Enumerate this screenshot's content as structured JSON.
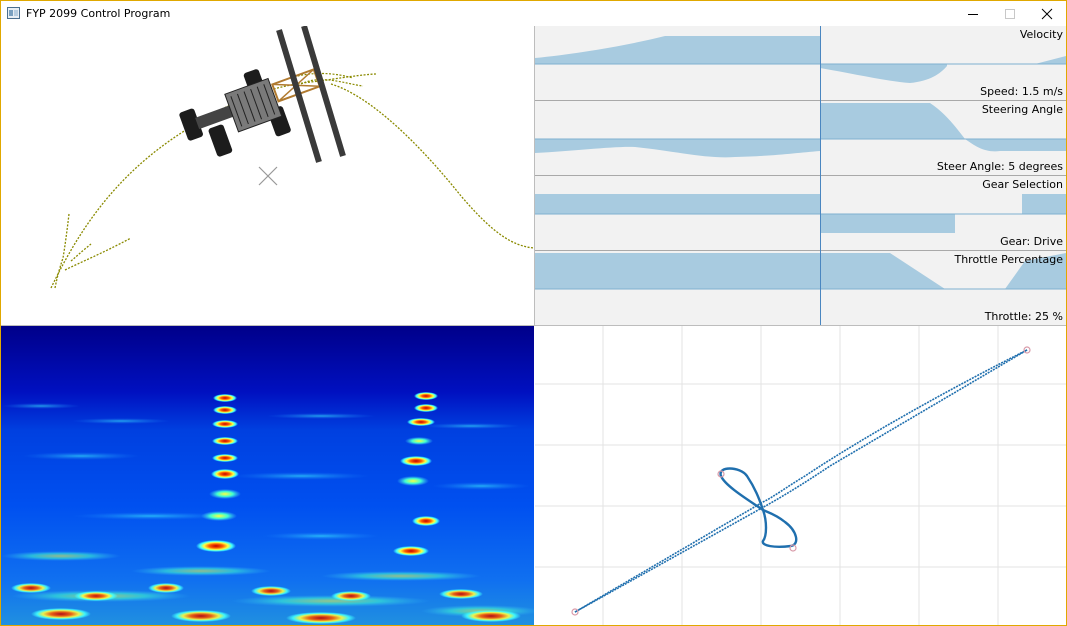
{
  "window": {
    "title": "FYP 2099 Control Program",
    "controls": [
      "minimize-icon",
      "maximize-icon",
      "close-icon"
    ]
  },
  "simulation": {
    "icons": [
      "vehicle-icon",
      "target-cross-icon"
    ],
    "path_color": "#8a8a00"
  },
  "graphs": {
    "fill_color": "#a8cbe0",
    "strips": [
      {
        "title": "Velocity",
        "readout": "Speed: 1.5 m/s"
      },
      {
        "title": "Steering Angle",
        "readout": "Steer Angle: 5 degrees"
      },
      {
        "title": "Gear Selection",
        "readout": "Gear: Drive"
      },
      {
        "title": "Throttle Percentage",
        "readout": "Throttle: 25 %"
      }
    ]
  },
  "spectrogram": {
    "colormap": "jet"
  },
  "track": {
    "line_color": "#1f6fae",
    "marker_color": "#d99aa8"
  }
}
